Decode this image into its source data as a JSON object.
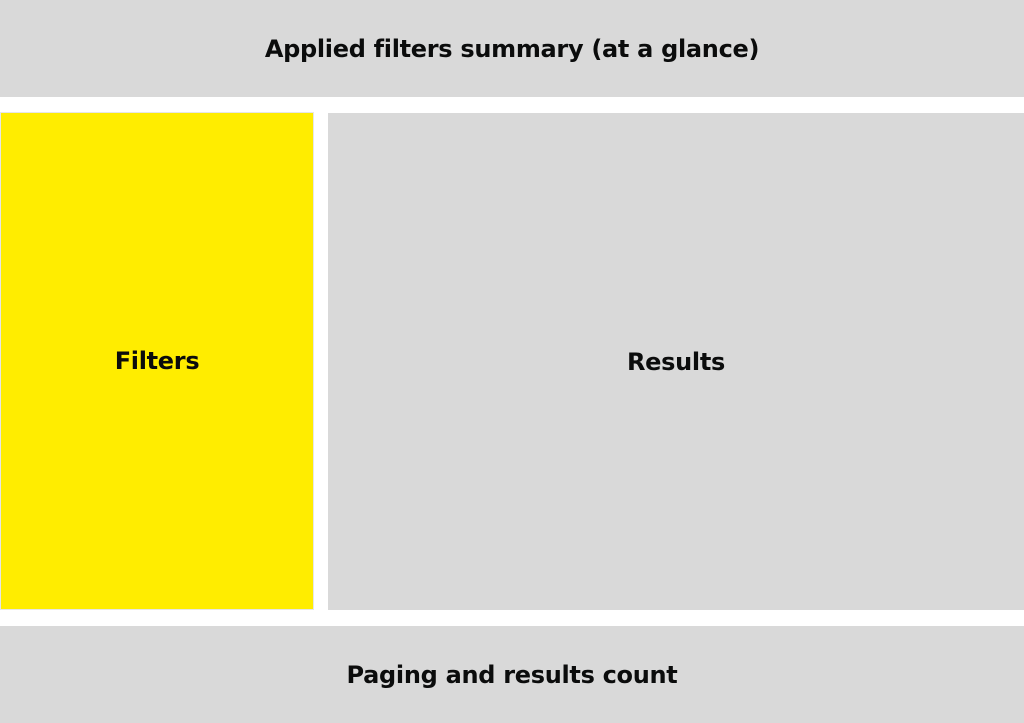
{
  "regions": {
    "summary": {
      "label": "Applied filters summary (at a glance)"
    },
    "filters": {
      "label": "Filters"
    },
    "results": {
      "label": "Results"
    },
    "paging": {
      "label": "Paging and results count"
    }
  },
  "colors": {
    "panel_grey": "#d9d9d9",
    "highlight_yellow": "#ffed00",
    "text": "#0b0c0c",
    "background": "#ffffff"
  }
}
